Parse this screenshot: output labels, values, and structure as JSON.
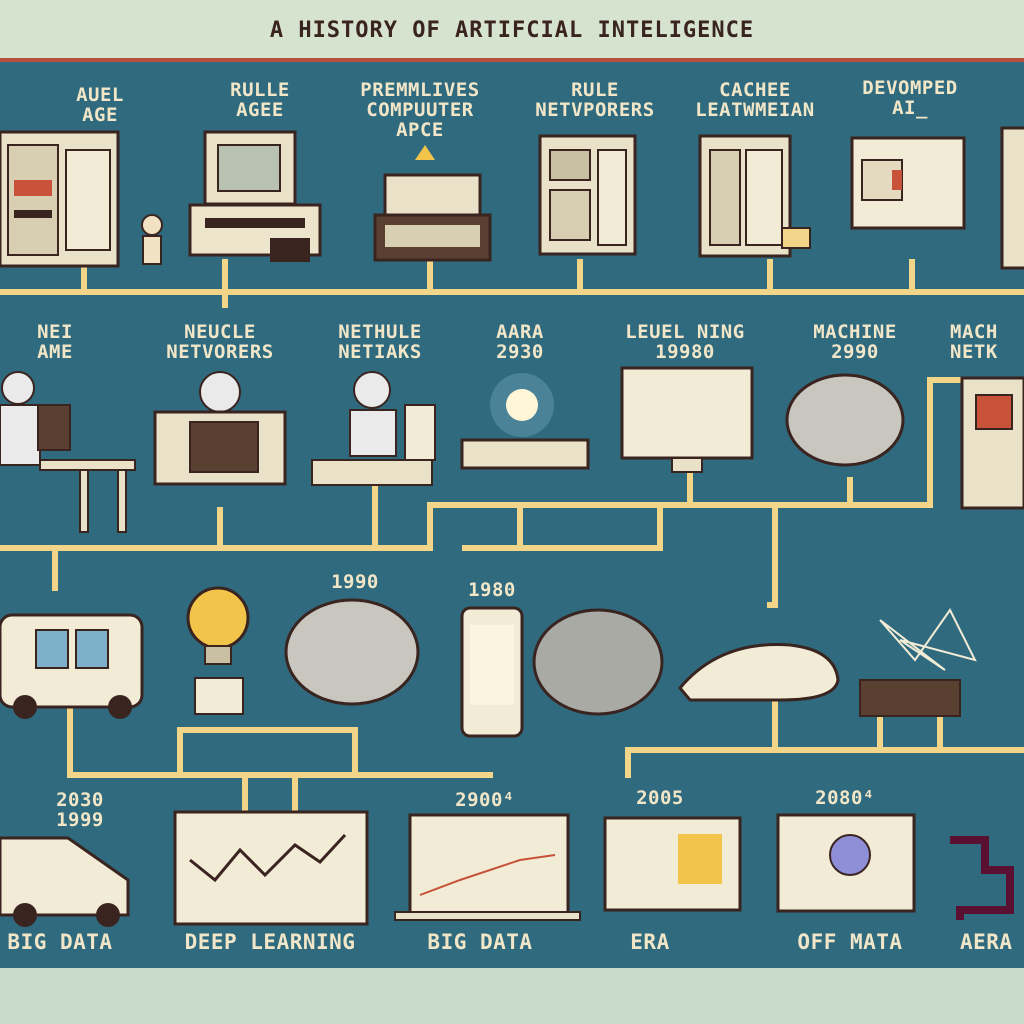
{
  "title": "A HISTORY OF ARTIFCIAL INTELIGENCE",
  "colors": {
    "background": "#c9dccb",
    "panel": "#2f6a7e",
    "border": "#b64f3b",
    "pipe": "#f3d58a",
    "label": "#f1e6c8",
    "title": "#3a2420"
  },
  "rows": {
    "row1": [
      {
        "label": "AUEL\nAGE",
        "icon": "mainframe-computer-icon"
      },
      {
        "label": "RULLE\nAGEE",
        "icon": "desktop-computer-icon"
      },
      {
        "label": "PREMMLIVES\nCOMPUUTER\nAPCE",
        "icon": "typewriter-icon"
      },
      {
        "label": "RULE\nNETVPORERS",
        "icon": "server-cabinet-icon"
      },
      {
        "label": "CACHEE\nLEATWMEIAN",
        "icon": "tower-computer-icon"
      },
      {
        "label": "DEVOMPED\nAI_",
        "icon": "robot-box-icon"
      }
    ],
    "row2": [
      {
        "label": "NEI\nAME",
        "icon": "person-at-desk-icon"
      },
      {
        "label": "NEUCLE\nNETVORERS",
        "icon": "scientist-terminal-icon"
      },
      {
        "label": "NETHULE\nNETIAKS",
        "icon": "researcher-icon"
      },
      {
        "label": "AARA\n2930",
        "icon": "glowing-keyboard-icon"
      },
      {
        "label": "LEUEL NING\n19980",
        "icon": "monitor-network-icon"
      },
      {
        "label": "MACHINE\n2990",
        "icon": "brain-icon"
      },
      {
        "label": "MACH\nNETK",
        "icon": "server-tower-icon"
      }
    ],
    "row3": [
      {
        "label": "",
        "icon": "van-icon"
      },
      {
        "label": "",
        "icon": "lightbulb-icon"
      },
      {
        "label": "1990",
        "icon": "brain-icon"
      },
      {
        "label": "1980",
        "icon": "smartphone-icon"
      },
      {
        "label": "",
        "icon": "brain-icon"
      },
      {
        "label": "",
        "icon": "hover-craft-icon"
      },
      {
        "label": "",
        "icon": "network-graph-icon"
      }
    ],
    "row4": [
      {
        "label": "2030\n1999",
        "icon": "van-icon"
      },
      {
        "label": "",
        "icon": "line-chart-monitor-icon"
      },
      {
        "label": "2900⁴",
        "icon": "laptop-chart-icon"
      },
      {
        "label": "2005",
        "icon": "monitor-icon"
      },
      {
        "label": "2080⁴",
        "icon": "monitor-network-icon"
      },
      {
        "label": "",
        "icon": "circuit-icon"
      }
    ]
  },
  "bottom_labels": [
    "BIG DATA",
    "DEEP LEARNING",
    "BIG DATA",
    "ERA",
    "OFF MATA",
    "AERA"
  ]
}
